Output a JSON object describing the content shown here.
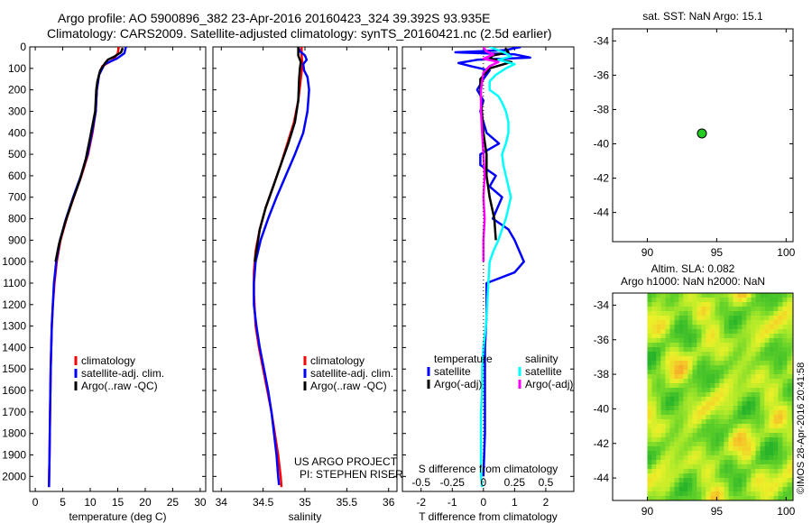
{
  "header": {
    "line1": "Argo profile: AO 5900896_382 23-Apr-2016 20160423_324 39.392S 93.935E",
    "line2": "Climatology: CARS2009. Satellite-adjusted climatology: synTS_20160421.nc (2.5d earlier)"
  },
  "credit": {
    "project": "US ARGO PROJECT",
    "pi": "PI: STEPHEN RISER",
    "imos": "©IMOS 28-Apr-2016 20:41:58"
  },
  "colors": {
    "climatology": "#ff0000",
    "satellite": "#0000ff",
    "argo": "#000000",
    "s_satellite": "#00ffff",
    "s_argo": "#ff00ff",
    "marker": "#22cc22"
  },
  "chart_data": [
    {
      "type": "line",
      "id": "temperature",
      "xlabel": "temperature (deg C)",
      "xlim": [
        -1,
        31
      ],
      "ylim": [
        2070,
        0
      ],
      "xticks": [
        0,
        5,
        10,
        15,
        20,
        25,
        30
      ],
      "yticks": [
        0,
        100,
        200,
        300,
        400,
        500,
        600,
        700,
        800,
        900,
        1000,
        1100,
        1200,
        1300,
        1400,
        1500,
        1600,
        1700,
        1800,
        1900,
        2000
      ],
      "legend": [
        "climatology",
        "satellite-adj. clim.",
        "Argo(..raw -QC)"
      ],
      "series": [
        {
          "name": "climatology",
          "color": "#ff0000",
          "points": [
            [
              15.2,
              0
            ],
            [
              15.0,
              30
            ],
            [
              14.2,
              60
            ],
            [
              12.2,
              90
            ],
            [
              11.6,
              130
            ],
            [
              11.2,
              200
            ],
            [
              11.0,
              300
            ],
            [
              10.4,
              400
            ],
            [
              9.6,
              500
            ],
            [
              8.4,
              600
            ],
            [
              7.0,
              700
            ],
            [
              5.7,
              800
            ],
            [
              4.6,
              900
            ],
            [
              3.9,
              1000
            ],
            [
              3.5,
              1100
            ],
            [
              3.2,
              1200
            ],
            [
              3.0,
              1300
            ],
            [
              2.9,
              1400
            ],
            [
              2.8,
              1500
            ],
            [
              2.7,
              1700
            ],
            [
              2.6,
              1900
            ],
            [
              2.5,
              2050
            ]
          ]
        },
        {
          "name": "satellite-adj. clim.",
          "color": "#0000ff",
          "points": [
            [
              16.5,
              0
            ],
            [
              16.2,
              30
            ],
            [
              14.8,
              55
            ],
            [
              12.6,
              80
            ],
            [
              11.6,
              130
            ],
            [
              11.2,
              200
            ],
            [
              11.0,
              300
            ],
            [
              10.3,
              400
            ],
            [
              9.5,
              500
            ],
            [
              8.3,
              600
            ],
            [
              6.9,
              700
            ],
            [
              5.6,
              800
            ],
            [
              4.5,
              900
            ],
            [
              3.8,
              1000
            ],
            [
              3.4,
              1100
            ],
            [
              3.2,
              1200
            ],
            [
              3.0,
              1300
            ],
            [
              2.9,
              1400
            ],
            [
              2.8,
              1500
            ],
            [
              2.7,
              1700
            ],
            [
              2.6,
              1900
            ],
            [
              2.5,
              2050
            ]
          ]
        },
        {
          "name": "Argo(..raw -QC)",
          "color": "#000000",
          "points": [
            [
              15.9,
              5
            ],
            [
              15.6,
              25
            ],
            [
              14.4,
              45
            ],
            [
              13.2,
              60
            ],
            [
              12.7,
              75
            ],
            [
              11.8,
              110
            ],
            [
              11.3,
              160
            ],
            [
              11.1,
              200
            ],
            [
              10.9,
              300
            ],
            [
              10.0,
              420
            ],
            [
              9.2,
              520
            ],
            [
              8.1,
              620
            ],
            [
              6.7,
              720
            ],
            [
              5.4,
              820
            ],
            [
              4.3,
              920
            ],
            [
              3.7,
              1000
            ]
          ]
        }
      ]
    },
    {
      "type": "line",
      "id": "salinity",
      "xlabel": "salinity",
      "xlim": [
        33.9,
        36.1
      ],
      "ylim": [
        2070,
        0
      ],
      "xticks": [
        34,
        34.5,
        35,
        35.5,
        36
      ],
      "legend": [
        "climatology",
        "satellite-adj. clim.",
        "Argo(..raw -QC)"
      ],
      "series": [
        {
          "name": "climatology",
          "color": "#ff0000",
          "points": [
            [
              34.96,
              0
            ],
            [
              34.96,
              40
            ],
            [
              34.97,
              80
            ],
            [
              34.95,
              150
            ],
            [
              34.92,
              250
            ],
            [
              34.87,
              350
            ],
            [
              34.79,
              450
            ],
            [
              34.71,
              550
            ],
            [
              34.62,
              650
            ],
            [
              34.53,
              750
            ],
            [
              34.46,
              850
            ],
            [
              34.41,
              950
            ],
            [
              34.39,
              1050
            ],
            [
              34.39,
              1150
            ],
            [
              34.41,
              1300
            ],
            [
              34.45,
              1400
            ],
            [
              34.5,
              1500
            ],
            [
              34.55,
              1600
            ],
            [
              34.6,
              1700
            ],
            [
              34.64,
              1800
            ],
            [
              34.68,
              1900
            ],
            [
              34.71,
              2000
            ],
            [
              34.72,
              2050
            ]
          ]
        },
        {
          "name": "satellite-adj. clim.",
          "color": "#0000ff",
          "points": [
            [
              34.92,
              0
            ],
            [
              34.94,
              20
            ],
            [
              35.0,
              40
            ],
            [
              35.02,
              60
            ],
            [
              34.98,
              80
            ],
            [
              34.99,
              110
            ],
            [
              35.03,
              140
            ],
            [
              35.05,
              200
            ],
            [
              35.03,
              300
            ],
            [
              34.98,
              400
            ],
            [
              34.88,
              500
            ],
            [
              34.77,
              600
            ],
            [
              34.66,
              700
            ],
            [
              34.56,
              800
            ],
            [
              34.47,
              900
            ],
            [
              34.41,
              1000
            ],
            [
              34.39,
              1100
            ],
            [
              34.39,
              1200
            ],
            [
              34.42,
              1300
            ],
            [
              34.46,
              1400
            ],
            [
              34.51,
              1500
            ],
            [
              34.56,
              1600
            ],
            [
              34.6,
              1700
            ],
            [
              34.63,
              1800
            ],
            [
              34.66,
              1900
            ],
            [
              34.68,
              2000
            ],
            [
              34.69,
              2040
            ]
          ]
        },
        {
          "name": "Argo(..raw -QC)",
          "color": "#000000",
          "points": [
            [
              34.92,
              0
            ],
            [
              34.92,
              40
            ],
            [
              34.95,
              70
            ],
            [
              34.94,
              100
            ],
            [
              34.93,
              150
            ],
            [
              34.92,
              250
            ],
            [
              34.88,
              350
            ],
            [
              34.8,
              450
            ],
            [
              34.71,
              550
            ],
            [
              34.62,
              650
            ],
            [
              34.53,
              750
            ],
            [
              34.46,
              850
            ],
            [
              34.42,
              950
            ],
            [
              34.4,
              1000
            ]
          ]
        }
      ]
    },
    {
      "type": "line",
      "id": "differences",
      "xlabel": "T difference from climatology",
      "xlabel_top": "S difference from climatology",
      "xlim": [
        -2.6,
        2.9
      ],
      "ylim": [
        2070,
        0
      ],
      "xticks": [
        -2,
        -1,
        0,
        1,
        2
      ],
      "xticks_s": [
        -0.5,
        -0.25,
        0,
        0.25,
        0.5
      ],
      "legend": {
        "temperature": "temperature",
        "salinity": "salinity",
        "t_satellite": "satellite",
        "t_argo": "Argo(-adj)",
        "s_satellite": "satellite",
        "s_argo": "Argo(-adj)"
      },
      "series": [
        {
          "name": "temperature satellite",
          "color": "#0000ff",
          "points": [
            [
              1.2,
              0
            ],
            [
              0.7,
              15
            ],
            [
              -0.9,
              25
            ],
            [
              1.0,
              35
            ],
            [
              1.5,
              50
            ],
            [
              -0.2,
              60
            ],
            [
              -0.8,
              75
            ],
            [
              -0.4,
              90
            ],
            [
              0.2,
              110
            ],
            [
              0.0,
              150
            ],
            [
              -0.2,
              200
            ],
            [
              0.0,
              250
            ],
            [
              -0.1,
              300
            ],
            [
              0.1,
              400
            ],
            [
              0.5,
              450
            ],
            [
              -0.1,
              500
            ],
            [
              -0.1,
              550
            ],
            [
              0.4,
              600
            ],
            [
              0.2,
              650
            ],
            [
              0.6,
              700
            ],
            [
              0.3,
              800
            ],
            [
              0.8,
              850
            ],
            [
              1.0,
              900
            ],
            [
              1.3,
              1000
            ],
            [
              1.0,
              1050
            ],
            [
              0.1,
              1100
            ],
            [
              0.1,
              1250
            ],
            [
              0.05,
              1400
            ],
            [
              0.05,
              1600
            ],
            [
              0.05,
              1800
            ],
            [
              0.0,
              2000
            ]
          ]
        },
        {
          "name": "temperature Argo(-adj)",
          "color": "#000000",
          "points": [
            [
              0.7,
              5
            ],
            [
              0.8,
              25
            ],
            [
              0.3,
              40
            ],
            [
              0.2,
              55
            ],
            [
              0.9,
              70
            ],
            [
              0.2,
              100
            ],
            [
              -0.1,
              150
            ],
            [
              -0.1,
              200
            ],
            [
              -0.05,
              300
            ],
            [
              0.0,
              400
            ],
            [
              0.1,
              500
            ],
            [
              0.1,
              600
            ],
            [
              0.2,
              700
            ],
            [
              0.35,
              800
            ],
            [
              0.4,
              900
            ]
          ]
        },
        {
          "name": "salinity satellite",
          "color": "#00ffff",
          "points": [
            [
              0.05,
              0
            ],
            [
              0.18,
              30
            ],
            [
              0.22,
              45
            ],
            [
              0.12,
              60
            ],
            [
              0.25,
              80
            ],
            [
              0.18,
              100
            ],
            [
              0.1,
              130
            ],
            [
              0.05,
              160
            ],
            [
              0.05,
              200
            ],
            [
              0.12,
              230
            ],
            [
              0.15,
              260
            ],
            [
              0.18,
              300
            ],
            [
              0.2,
              350
            ],
            [
              0.2,
              400
            ],
            [
              0.18,
              450
            ],
            [
              0.15,
              500
            ],
            [
              0.16,
              550
            ],
            [
              0.18,
              600
            ],
            [
              0.2,
              650
            ],
            [
              0.22,
              700
            ],
            [
              0.2,
              750
            ],
            [
              0.18,
              800
            ],
            [
              0.15,
              850
            ],
            [
              0.12,
              900
            ],
            [
              0.08,
              950
            ],
            [
              0.05,
              1000
            ],
            [
              0.04,
              1100
            ],
            [
              0.03,
              1200
            ],
            [
              0.02,
              1300
            ],
            [
              0.0,
              1400
            ],
            [
              -0.01,
              1500
            ],
            [
              -0.01,
              1600
            ],
            [
              -0.02,
              1700
            ],
            [
              -0.02,
              1800
            ],
            [
              -0.02,
              1900
            ],
            [
              -0.02,
              2000
            ],
            [
              -0.01,
              2050
            ]
          ]
        },
        {
          "name": "salinity Argo(-adj)",
          "color": "#ff00ff",
          "points": [
            [
              0.0,
              0
            ],
            [
              0.02,
              20
            ],
            [
              0.08,
              35
            ],
            [
              0.0,
              55
            ],
            [
              0.12,
              70
            ],
            [
              0.05,
              90
            ],
            [
              0.0,
              120
            ],
            [
              -0.02,
              200
            ],
            [
              -0.02,
              300
            ],
            [
              -0.01,
              400
            ],
            [
              0.0,
              500
            ],
            [
              0.01,
              600
            ],
            [
              0.0,
              700
            ],
            [
              0.01,
              800
            ],
            [
              0.0,
              900
            ],
            [
              0.0,
              1000
            ]
          ]
        }
      ]
    },
    {
      "type": "scatter",
      "id": "position",
      "title": "sat. SST: NaN Argo: 15.1",
      "xlim": [
        87.5,
        100.5
      ],
      "ylim": [
        -45.7,
        -33.3
      ],
      "xticks": [
        90,
        95,
        100
      ],
      "yticks": [
        -34,
        -36,
        -38,
        -40,
        -42,
        -44
      ],
      "points": [
        [
          93.935,
          -39.392
        ]
      ]
    },
    {
      "type": "heatmap",
      "id": "altimetry",
      "title1": "Altim. SLA: 0.082",
      "title2": "Argo h1000: NaN h2000: NaN",
      "xlim": [
        87.5,
        100.5
      ],
      "ylim": [
        -45.3,
        -33.3
      ],
      "xticks": [
        90,
        95,
        100
      ],
      "yticks": [
        -34,
        -36,
        -38,
        -40,
        -42,
        -44
      ],
      "data_extent": {
        "x": [
          90,
          100
        ],
        "y": [
          -45.3,
          -33.3
        ]
      }
    }
  ]
}
